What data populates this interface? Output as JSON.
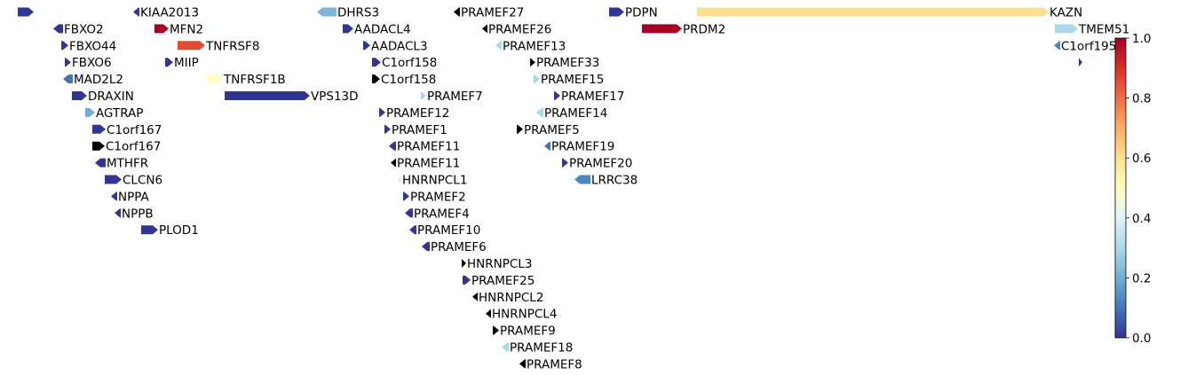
{
  "chart_data": {
    "type": "gene-track",
    "colorbar": {
      "ticks": [
        0.0,
        0.2,
        0.4,
        0.6,
        0.8,
        1.0
      ],
      "tick_labels": [
        "0.0",
        "0.2",
        "0.4",
        "0.6",
        "0.8",
        "1.0"
      ],
      "range": [
        0,
        1
      ],
      "colormap": "RdYlBu_r",
      "stops": [
        "#313695",
        "#4575b4",
        "#74add1",
        "#abd9e9",
        "#e0f3f8",
        "#ffffbf",
        "#fee090",
        "#fdae61",
        "#f46d43",
        "#d73027",
        "#a50026"
      ]
    },
    "genes": [
      {
        "name": "",
        "row": 0,
        "start": 20,
        "end": 38,
        "strand": "+",
        "color": "#313695"
      },
      {
        "name": "KIAA2013",
        "row": 0,
        "start": 150,
        "end": 157,
        "strand": "-",
        "color": "#313695"
      },
      {
        "name": "DHRS3",
        "row": 0,
        "start": 357,
        "end": 379,
        "strand": "-",
        "color": "#7fb4d6"
      },
      {
        "name": "PRAMEF27",
        "row": 0,
        "start": 511,
        "end": 518,
        "strand": "-",
        "color": "#000000"
      },
      {
        "name": "PDPN",
        "row": 0,
        "start": 686,
        "end": 703,
        "strand": "+",
        "color": "#313695"
      },
      {
        "name": "KAZN",
        "row": 0,
        "start": 785,
        "end": 1181,
        "strand": "+",
        "color": "#fde08f"
      },
      {
        "name": "FBXO2",
        "row": 1,
        "start": 60,
        "end": 71,
        "strand": "-",
        "color": "#313695"
      },
      {
        "name": "MFN2",
        "row": 1,
        "start": 174,
        "end": 190,
        "strand": "+",
        "color": "#a50026"
      },
      {
        "name": "AADACL4",
        "row": 1,
        "start": 386,
        "end": 398,
        "strand": "+",
        "color": "#313695"
      },
      {
        "name": "PRAMEF26",
        "row": 1,
        "start": 543,
        "end": 549,
        "strand": "-",
        "color": "#000000"
      },
      {
        "name": "PRDM2",
        "row": 1,
        "start": 723,
        "end": 768,
        "strand": "+",
        "color": "#a50026"
      },
      {
        "name": "TMEM51",
        "row": 1,
        "start": 1188,
        "end": 1214,
        "strand": "+",
        "color": "#acd8e8"
      },
      {
        "name": "FBXO44",
        "row": 2,
        "start": 69,
        "end": 77,
        "strand": "+",
        "color": "#313695"
      },
      {
        "name": "TNFRSF8",
        "row": 2,
        "start": 200,
        "end": 231,
        "strand": "+",
        "color": "#e04a33"
      },
      {
        "name": "AADACL3",
        "row": 2,
        "start": 409,
        "end": 417,
        "strand": "+",
        "color": "#313695"
      },
      {
        "name": "PRAMEF13",
        "row": 2,
        "start": 558,
        "end": 565,
        "strand": "-",
        "color": "#acd8e8"
      },
      {
        "name": "C1orf195",
        "row": 2,
        "start": 1187,
        "end": 1194,
        "strand": "-",
        "color": "#4a86bf"
      },
      {
        "name": "FBXO6",
        "row": 3,
        "start": 73,
        "end": 80,
        "strand": "+",
        "color": "#313695"
      },
      {
        "name": "MIIP",
        "row": 3,
        "start": 186,
        "end": 195,
        "strand": "+",
        "color": "#313695"
      },
      {
        "name": "C1orf158",
        "row": 3,
        "start": 419,
        "end": 429,
        "strand": "+",
        "color": "#313695"
      },
      {
        "name": "PRAMEF33",
        "row": 3,
        "start": 597,
        "end": 603,
        "strand": "+",
        "color": "#000000"
      },
      {
        "name": "",
        "row": 3,
        "start": 1215,
        "end": 1219,
        "strand": "+",
        "color": "#313695"
      },
      {
        "name": "MAD2L2",
        "row": 4,
        "start": 71,
        "end": 82,
        "strand": "-",
        "color": "#4575b4"
      },
      {
        "name": "TNFRSF1B",
        "row": 4,
        "start": 233,
        "end": 251,
        "strand": "+",
        "color": "#ffffc4"
      },
      {
        "name": "C1orf158",
        "row": 4,
        "start": 419,
        "end": 428,
        "strand": "+",
        "color": "#000000"
      },
      {
        "name": "PRAMEF15",
        "row": 4,
        "start": 601,
        "end": 608,
        "strand": "+",
        "color": "#acd8e8"
      },
      {
        "name": "DRAXIN",
        "row": 5,
        "start": 81,
        "end": 98,
        "strand": "+",
        "color": "#313695"
      },
      {
        "name": "VPS13D",
        "row": 5,
        "start": 253,
        "end": 349,
        "strand": "+",
        "color": "#313695"
      },
      {
        "name": "PRAMEF7",
        "row": 5,
        "start": 474,
        "end": 480,
        "strand": "+",
        "color": "#acd8e8"
      },
      {
        "name": "PRAMEF17",
        "row": 5,
        "start": 624,
        "end": 631,
        "strand": "+",
        "color": "#313695"
      },
      {
        "name": "AGTRAP",
        "row": 6,
        "start": 96,
        "end": 107,
        "strand": "+",
        "color": "#74add1"
      },
      {
        "name": "PRAMEF12",
        "row": 6,
        "start": 427,
        "end": 434,
        "strand": "+",
        "color": "#313695"
      },
      {
        "name": "PRAMEF14",
        "row": 6,
        "start": 604,
        "end": 612,
        "strand": "-",
        "color": "#acd8e8"
      },
      {
        "name": "C1orf167",
        "row": 7,
        "start": 104,
        "end": 119,
        "strand": "+",
        "color": "#313695"
      },
      {
        "name": "PRAMEF1",
        "row": 7,
        "start": 433,
        "end": 440,
        "strand": "+",
        "color": "#313695"
      },
      {
        "name": "PRAMEF5",
        "row": 7,
        "start": 582,
        "end": 589,
        "strand": "+",
        "color": "#000000"
      },
      {
        "name": "C1orf167",
        "row": 8,
        "start": 104,
        "end": 118,
        "strand": "+",
        "color": "#000000"
      },
      {
        "name": "PRAMEF11",
        "row": 8,
        "start": 438,
        "end": 446,
        "strand": "-",
        "color": "#313695"
      },
      {
        "name": "PRAMEF19",
        "row": 8,
        "start": 613,
        "end": 620,
        "strand": "-",
        "color": "#4575b4"
      },
      {
        "name": "MTHFR",
        "row": 9,
        "start": 107,
        "end": 119,
        "strand": "-",
        "color": "#313695"
      },
      {
        "name": "PRAMEF11",
        "row": 9,
        "start": 440,
        "end": 446,
        "strand": "-",
        "color": "#000000"
      },
      {
        "name": "PRAMEF20",
        "row": 9,
        "start": 633,
        "end": 640,
        "strand": "+",
        "color": "#313695"
      },
      {
        "name": "CLCN6",
        "row": 10,
        "start": 118,
        "end": 137,
        "strand": "+",
        "color": "#313695"
      },
      {
        "name": "HNRNPCL1",
        "row": 10,
        "start": 447,
        "end": 452,
        "strand": "-",
        "color": "#e0f3f8"
      },
      {
        "name": "LRRC38",
        "row": 10,
        "start": 647,
        "end": 665,
        "strand": "-",
        "color": "#4a86bf"
      },
      {
        "name": "NPPA",
        "row": 11,
        "start": 125,
        "end": 132,
        "strand": "-",
        "color": "#313695"
      },
      {
        "name": "PRAMEF2",
        "row": 11,
        "start": 454,
        "end": 461,
        "strand": "+",
        "color": "#313695"
      },
      {
        "name": "NPPB",
        "row": 12,
        "start": 129,
        "end": 136,
        "strand": "-",
        "color": "#313695"
      },
      {
        "name": "PRAMEF4",
        "row": 12,
        "start": 456,
        "end": 465,
        "strand": "-",
        "color": "#313695"
      },
      {
        "name": "PLOD1",
        "row": 13,
        "start": 159,
        "end": 178,
        "strand": "+",
        "color": "#313695"
      },
      {
        "name": "PRAMEF10",
        "row": 13,
        "start": 461,
        "end": 469,
        "strand": "-",
        "color": "#313695"
      },
      {
        "name": "PRAMEF6",
        "row": 14,
        "start": 475,
        "end": 484,
        "strand": "-",
        "color": "#313695"
      },
      {
        "name": "HNRNPCL3",
        "row": 15,
        "start": 520,
        "end": 525,
        "strand": "+",
        "color": "#000000"
      },
      {
        "name": "PRAMEF25",
        "row": 16,
        "start": 521,
        "end": 530,
        "strand": "+",
        "color": "#313695"
      },
      {
        "name": "HNRNPCL2",
        "row": 17,
        "start": 532,
        "end": 538,
        "strand": "-",
        "color": "#000000"
      },
      {
        "name": "HNRNPCL4",
        "row": 18,
        "start": 547,
        "end": 553,
        "strand": "-",
        "color": "#000000"
      },
      {
        "name": "PRAMEF9",
        "row": 19,
        "start": 555,
        "end": 562,
        "strand": "+",
        "color": "#000000"
      },
      {
        "name": "PRAMEF18",
        "row": 20,
        "start": 565,
        "end": 573,
        "strand": "-",
        "color": "#acd8e8"
      },
      {
        "name": "PRAMEF8",
        "row": 21,
        "start": 585,
        "end": 592,
        "strand": "-",
        "color": "#000000"
      }
    ]
  }
}
